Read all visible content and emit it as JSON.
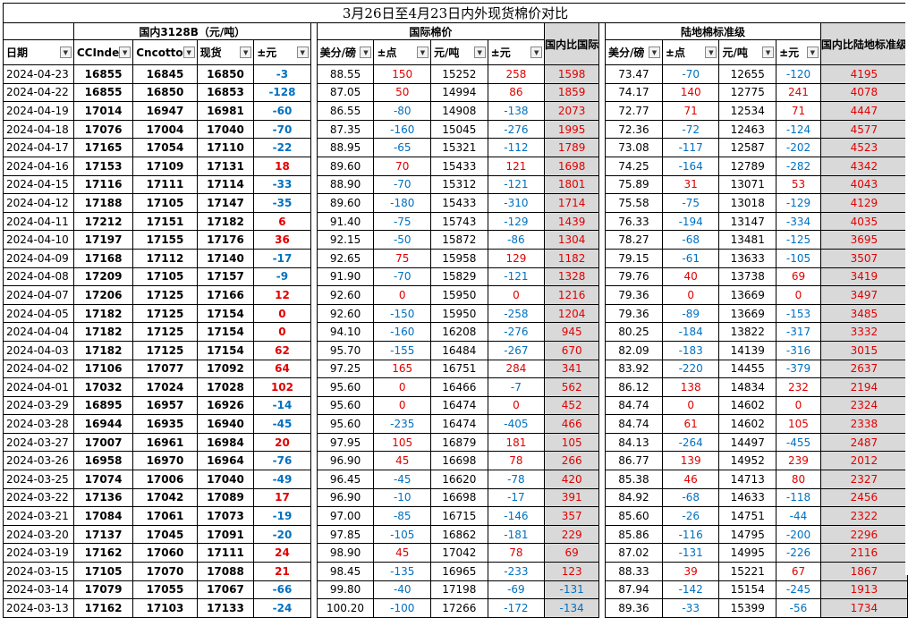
{
  "title": "3月26日至4月23日内外现货棉价对比",
  "groups": {
    "domestic": "国内3128B（元/吨）",
    "intl": "国际棉价",
    "land": "陆地棉标准级"
  },
  "headers": [
    "日期",
    "CCInde",
    "Cncotto",
    "现货",
    "±元",
    "美分/磅",
    "±点",
    "元/吨",
    "±元",
    "国内比国际",
    "美分/磅",
    "±点",
    "元/吨",
    "±元",
    "国内比陆地标准级"
  ],
  "rows": [
    [
      "2024-04-23",
      "16855",
      "16845",
      "16850",
      "-3",
      "88.55",
      "150",
      "15252",
      "258",
      "1598",
      "73.47",
      "-70",
      "12655",
      "-120",
      "4195"
    ],
    [
      "2024-04-22",
      "16855",
      "16850",
      "16853",
      "-128",
      "87.05",
      "50",
      "14994",
      "86",
      "1859",
      "74.17",
      "140",
      "12775",
      "241",
      "4078"
    ],
    [
      "2024-04-19",
      "17014",
      "16947",
      "16981",
      "-60",
      "86.55",
      "-80",
      "14908",
      "-138",
      "2073",
      "72.77",
      "71",
      "12534",
      "71",
      "4447"
    ],
    [
      "2024-04-18",
      "17076",
      "17004",
      "17040",
      "-70",
      "87.35",
      "-160",
      "15045",
      "-276",
      "1995",
      "72.36",
      "-72",
      "12463",
      "-124",
      "4577"
    ],
    [
      "2024-04-17",
      "17165",
      "17054",
      "17110",
      "-22",
      "88.95",
      "-65",
      "15321",
      "-112",
      "1789",
      "73.08",
      "-117",
      "12587",
      "-202",
      "4523"
    ],
    [
      "2024-04-16",
      "17153",
      "17109",
      "17131",
      "18",
      "89.60",
      "70",
      "15433",
      "121",
      "1698",
      "74.25",
      "-164",
      "12789",
      "-282",
      "4342"
    ],
    [
      "2024-04-15",
      "17116",
      "17111",
      "17114",
      "-33",
      "88.90",
      "-70",
      "15312",
      "-121",
      "1801",
      "75.89",
      "31",
      "13071",
      "53",
      "4043"
    ],
    [
      "2024-04-12",
      "17188",
      "17105",
      "17147",
      "-35",
      "89.60",
      "-180",
      "15433",
      "-310",
      "1714",
      "75.58",
      "-75",
      "13018",
      "-129",
      "4129"
    ],
    [
      "2024-04-11",
      "17212",
      "17151",
      "17182",
      "6",
      "91.40",
      "-75",
      "15743",
      "-129",
      "1439",
      "76.33",
      "-194",
      "13147",
      "-334",
      "4035"
    ],
    [
      "2024-04-10",
      "17197",
      "17155",
      "17176",
      "36",
      "92.15",
      "-50",
      "15872",
      "-86",
      "1304",
      "78.27",
      "-68",
      "13481",
      "-125",
      "3695"
    ],
    [
      "2024-04-09",
      "17168",
      "17112",
      "17140",
      "-17",
      "92.65",
      "75",
      "15958",
      "129",
      "1182",
      "79.15",
      "-61",
      "13633",
      "-105",
      "3507"
    ],
    [
      "2024-04-08",
      "17209",
      "17105",
      "17157",
      "-9",
      "91.90",
      "-70",
      "15829",
      "-121",
      "1328",
      "79.76",
      "40",
      "13738",
      "69",
      "3419"
    ],
    [
      "2024-04-07",
      "17206",
      "17125",
      "17166",
      "12",
      "92.60",
      "0",
      "15950",
      "0",
      "1216",
      "79.36",
      "0",
      "13669",
      "0",
      "3497"
    ],
    [
      "2024-04-05",
      "17182",
      "17125",
      "17154",
      "0",
      "92.60",
      "-150",
      "15950",
      "-258",
      "1204",
      "79.36",
      "-89",
      "13669",
      "-153",
      "3485"
    ],
    [
      "2024-04-04",
      "17182",
      "17125",
      "17154",
      "0",
      "94.10",
      "-160",
      "16208",
      "-276",
      "945",
      "80.25",
      "-184",
      "13822",
      "-317",
      "3332"
    ],
    [
      "2024-04-03",
      "17182",
      "17125",
      "17154",
      "62",
      "95.70",
      "-155",
      "16484",
      "-267",
      "670",
      "82.09",
      "-183",
      "14139",
      "-316",
      "3015"
    ],
    [
      "2024-04-02",
      "17106",
      "17077",
      "17092",
      "64",
      "97.25",
      "165",
      "16751",
      "284",
      "341",
      "83.92",
      "-220",
      "14455",
      "-379",
      "2637"
    ],
    [
      "2024-04-01",
      "17032",
      "17024",
      "17028",
      "102",
      "95.60",
      "0",
      "16466",
      "-7",
      "562",
      "86.12",
      "138",
      "14834",
      "232",
      "2194"
    ],
    [
      "2024-03-29",
      "16895",
      "16957",
      "16926",
      "-14",
      "95.60",
      "0",
      "16474",
      "0",
      "452",
      "84.74",
      "0",
      "14602",
      "0",
      "2324"
    ],
    [
      "2024-03-28",
      "16944",
      "16935",
      "16940",
      "-45",
      "95.60",
      "-235",
      "16474",
      "-405",
      "466",
      "84.74",
      "61",
      "14602",
      "105",
      "2338"
    ],
    [
      "2024-03-27",
      "17007",
      "16961",
      "16984",
      "20",
      "97.95",
      "105",
      "16879",
      "181",
      "105",
      "84.13",
      "-264",
      "14497",
      "-455",
      "2487"
    ],
    [
      "2024-03-26",
      "16958",
      "16970",
      "16964",
      "-76",
      "96.90",
      "45",
      "16698",
      "78",
      "266",
      "86.77",
      "139",
      "14952",
      "239",
      "2012"
    ],
    [
      "2024-03-25",
      "17074",
      "17006",
      "17040",
      "-49",
      "96.45",
      "-45",
      "16620",
      "-78",
      "420",
      "85.38",
      "46",
      "14713",
      "80",
      "2327"
    ],
    [
      "2024-03-22",
      "17136",
      "17042",
      "17089",
      "17",
      "96.90",
      "-10",
      "16698",
      "-17",
      "391",
      "84.92",
      "-68",
      "14633",
      "-118",
      "2456"
    ],
    [
      "2024-03-21",
      "17084",
      "17061",
      "17073",
      "-19",
      "97.00",
      "-85",
      "16715",
      "-146",
      "357",
      "85.60",
      "-26",
      "14751",
      "-44",
      "2322"
    ],
    [
      "2024-03-20",
      "17137",
      "17045",
      "17091",
      "-20",
      "97.85",
      "-105",
      "16862",
      "-181",
      "229",
      "85.86",
      "-116",
      "14795",
      "-200",
      "2296"
    ],
    [
      "2024-03-19",
      "17162",
      "17060",
      "17111",
      "24",
      "98.90",
      "45",
      "17042",
      "78",
      "69",
      "87.02",
      "-131",
      "14995",
      "-226",
      "2116"
    ],
    [
      "2024-03-15",
      "17105",
      "17070",
      "17088",
      "21",
      "98.45",
      "-135",
      "16965",
      "-233",
      "123",
      "88.33",
      "39",
      "15221",
      "67",
      "1867"
    ],
    [
      "2024-03-14",
      "17079",
      "17055",
      "17067",
      "-66",
      "99.80",
      "-40",
      "17198",
      "-69",
      "-131",
      "87.94",
      "-142",
      "15154",
      "-245",
      "1913"
    ],
    [
      "2024-03-13",
      "17162",
      "17103",
      "17133",
      "-24",
      "100.20",
      "-100",
      "17266",
      "-172",
      "-134",
      "89.36",
      "-33",
      "15399",
      "-56",
      "1734"
    ]
  ],
  "colors": {
    "positive": "#e00000",
    "negative": "#0070c0",
    "shade": "#d9d9d9"
  },
  "icons": {
    "filter": "filter-dropdown-icon"
  }
}
